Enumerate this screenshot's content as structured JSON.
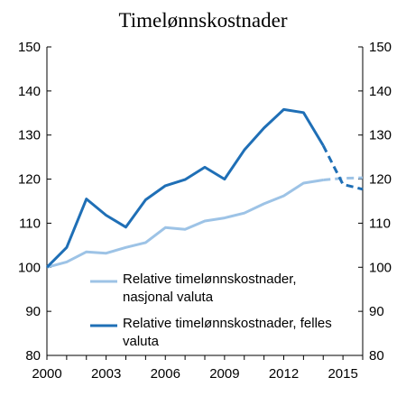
{
  "chart_data": {
    "type": "line",
    "title": "Timelønnskostnader",
    "xlabel": "",
    "ylabel": "",
    "xlim": [
      2000,
      2016
    ],
    "ylim": [
      80,
      150
    ],
    "y_ticks": [
      80,
      90,
      100,
      110,
      120,
      130,
      140,
      150
    ],
    "y_tick_labels": [
      "80",
      "90",
      "100",
      "110",
      "120",
      "130",
      "140",
      "150"
    ],
    "x_ticks": [
      2000,
      2003,
      2006,
      2009,
      2012,
      2015
    ],
    "x_tick_labels": [
      "2000",
      "2003",
      "2006",
      "2009",
      "2012",
      "2015"
    ],
    "secondary_y_axis": true,
    "grid": false,
    "legend_position": "inside-bottom-right",
    "series": [
      {
        "name": "Relative timelønnskostnader, nasjonal valuta",
        "legend_lines": [
          "Relative timelønnskostnader,",
          "nasjonal valuta"
        ],
        "color": "#9dc3e6",
        "x": [
          2000,
          2001,
          2002,
          2003,
          2004,
          2005,
          2006,
          2007,
          2008,
          2009,
          2010,
          2011,
          2012,
          2013,
          2014,
          2015,
          2016
        ],
        "values": [
          100,
          101.2,
          103.5,
          103.2,
          104.5,
          105.6,
          109.0,
          108.6,
          110.5,
          111.2,
          112.3,
          114.4,
          116.2,
          119.1,
          119.8,
          120.2,
          120.3
        ],
        "dashed_from": 2014
      },
      {
        "name": "Relative timelønnskostnader, felles valuta",
        "legend_lines": [
          "Relative timelønnskostnader, felles",
          "valuta"
        ],
        "color": "#1f6fb6",
        "x": [
          2000,
          2001,
          2002,
          2003,
          2004,
          2005,
          2006,
          2007,
          2008,
          2009,
          2010,
          2011,
          2012,
          2013,
          2014,
          2015,
          2016
        ],
        "values": [
          100,
          104.5,
          115.5,
          111.8,
          109.1,
          115.3,
          118.5,
          119.9,
          122.7,
          120.0,
          126.6,
          131.6,
          135.8,
          135.1,
          127.6,
          118.8,
          117.7
        ],
        "dashed_from": 2014
      }
    ]
  }
}
